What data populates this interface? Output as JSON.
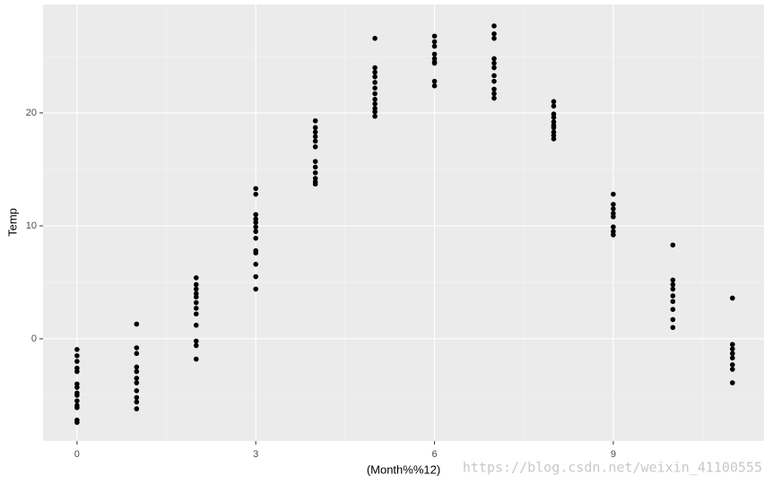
{
  "chart_data": {
    "type": "scatter",
    "xlabel": "(Month%%12)",
    "ylabel": "Temp",
    "annotation": "https://blog.csdn.net/weixin_41100555",
    "color": "#000000",
    "grid": true,
    "xlim": [
      -0.57,
      11.53
    ],
    "ylim": [
      -9.05,
      29.6
    ],
    "xticks": [
      0,
      3,
      6,
      9
    ],
    "yticks": [
      0,
      10,
      20
    ],
    "x": [
      0,
      0,
      0,
      0,
      0,
      0,
      0,
      0,
      0,
      0,
      0,
      0,
      0,
      0,
      1,
      1,
      1,
      1,
      1,
      1,
      1,
      1,
      1,
      1,
      1,
      2,
      2,
      2,
      2,
      2,
      2,
      2,
      2,
      2,
      2,
      2,
      2,
      3,
      3,
      3,
      3,
      3,
      3,
      3,
      3,
      3,
      3,
      3,
      3,
      3,
      4,
      4,
      4,
      4,
      4,
      4,
      4,
      4,
      4,
      4,
      4,
      4,
      5,
      5,
      5,
      5,
      5,
      5,
      5,
      5,
      5,
      5,
      5,
      5,
      6,
      6,
      6,
      6,
      6,
      6,
      6,
      6,
      6,
      7,
      7,
      7,
      7,
      7,
      7,
      7,
      7,
      7,
      7,
      7,
      8,
      8,
      8,
      8,
      8,
      8,
      8,
      8,
      8,
      8,
      9,
      9,
      9,
      9,
      9,
      9,
      9,
      9,
      10,
      10,
      10,
      10,
      10,
      10,
      10,
      10,
      10,
      11,
      11,
      11,
      11,
      11,
      11,
      11,
      11
    ],
    "y": [
      -0.95,
      -1.5,
      -2,
      -2.6,
      -2.9,
      -4,
      -4.3,
      -4.8,
      -5,
      -5.5,
      -5.9,
      -6.1,
      -7.2,
      -7.4,
      1.3,
      -0.8,
      -1.3,
      -2.5,
      -2.9,
      -3.5,
      -3.9,
      -4.6,
      -5.2,
      -5.6,
      -6.2,
      5.4,
      4.8,
      4.4,
      4,
      3.7,
      3.2,
      2.7,
      2.2,
      1.2,
      -0.2,
      -0.6,
      -1.8,
      13.3,
      12.8,
      11,
      10.6,
      10.3,
      9.9,
      9.5,
      8.9,
      7.8,
      7.6,
      6.6,
      5.5,
      4.4,
      19.3,
      18.7,
      18.3,
      17.9,
      17.5,
      17,
      15.7,
      15.2,
      14.7,
      14.2,
      13.9,
      13.7,
      26.6,
      24,
      23.6,
      23.2,
      22.7,
      22.2,
      21.7,
      21.2,
      20.8,
      20.4,
      20.1,
      19.7,
      26.8,
      26.3,
      25.9,
      25.2,
      24.8,
      24.5,
      24.4,
      22.8,
      22.4,
      27.7,
      27,
      26.6,
      24.8,
      24.4,
      24,
      23.3,
      22.8,
      22.1,
      21.7,
      21.3,
      21,
      20.6,
      19.9,
      19.6,
      19.2,
      18.9,
      18.7,
      18.3,
      18,
      17.7,
      12.8,
      11.9,
      11.5,
      11.1,
      10.8,
      9.9,
      9.5,
      9.2,
      8.3,
      5.2,
      4.8,
      4.4,
      3.8,
      3.3,
      2.6,
      1.7,
      1.0,
      3.6,
      -0.5,
      -0.9,
      -1.3,
      -1.7,
      -2.3,
      -2.7,
      -3.9
    ]
  }
}
